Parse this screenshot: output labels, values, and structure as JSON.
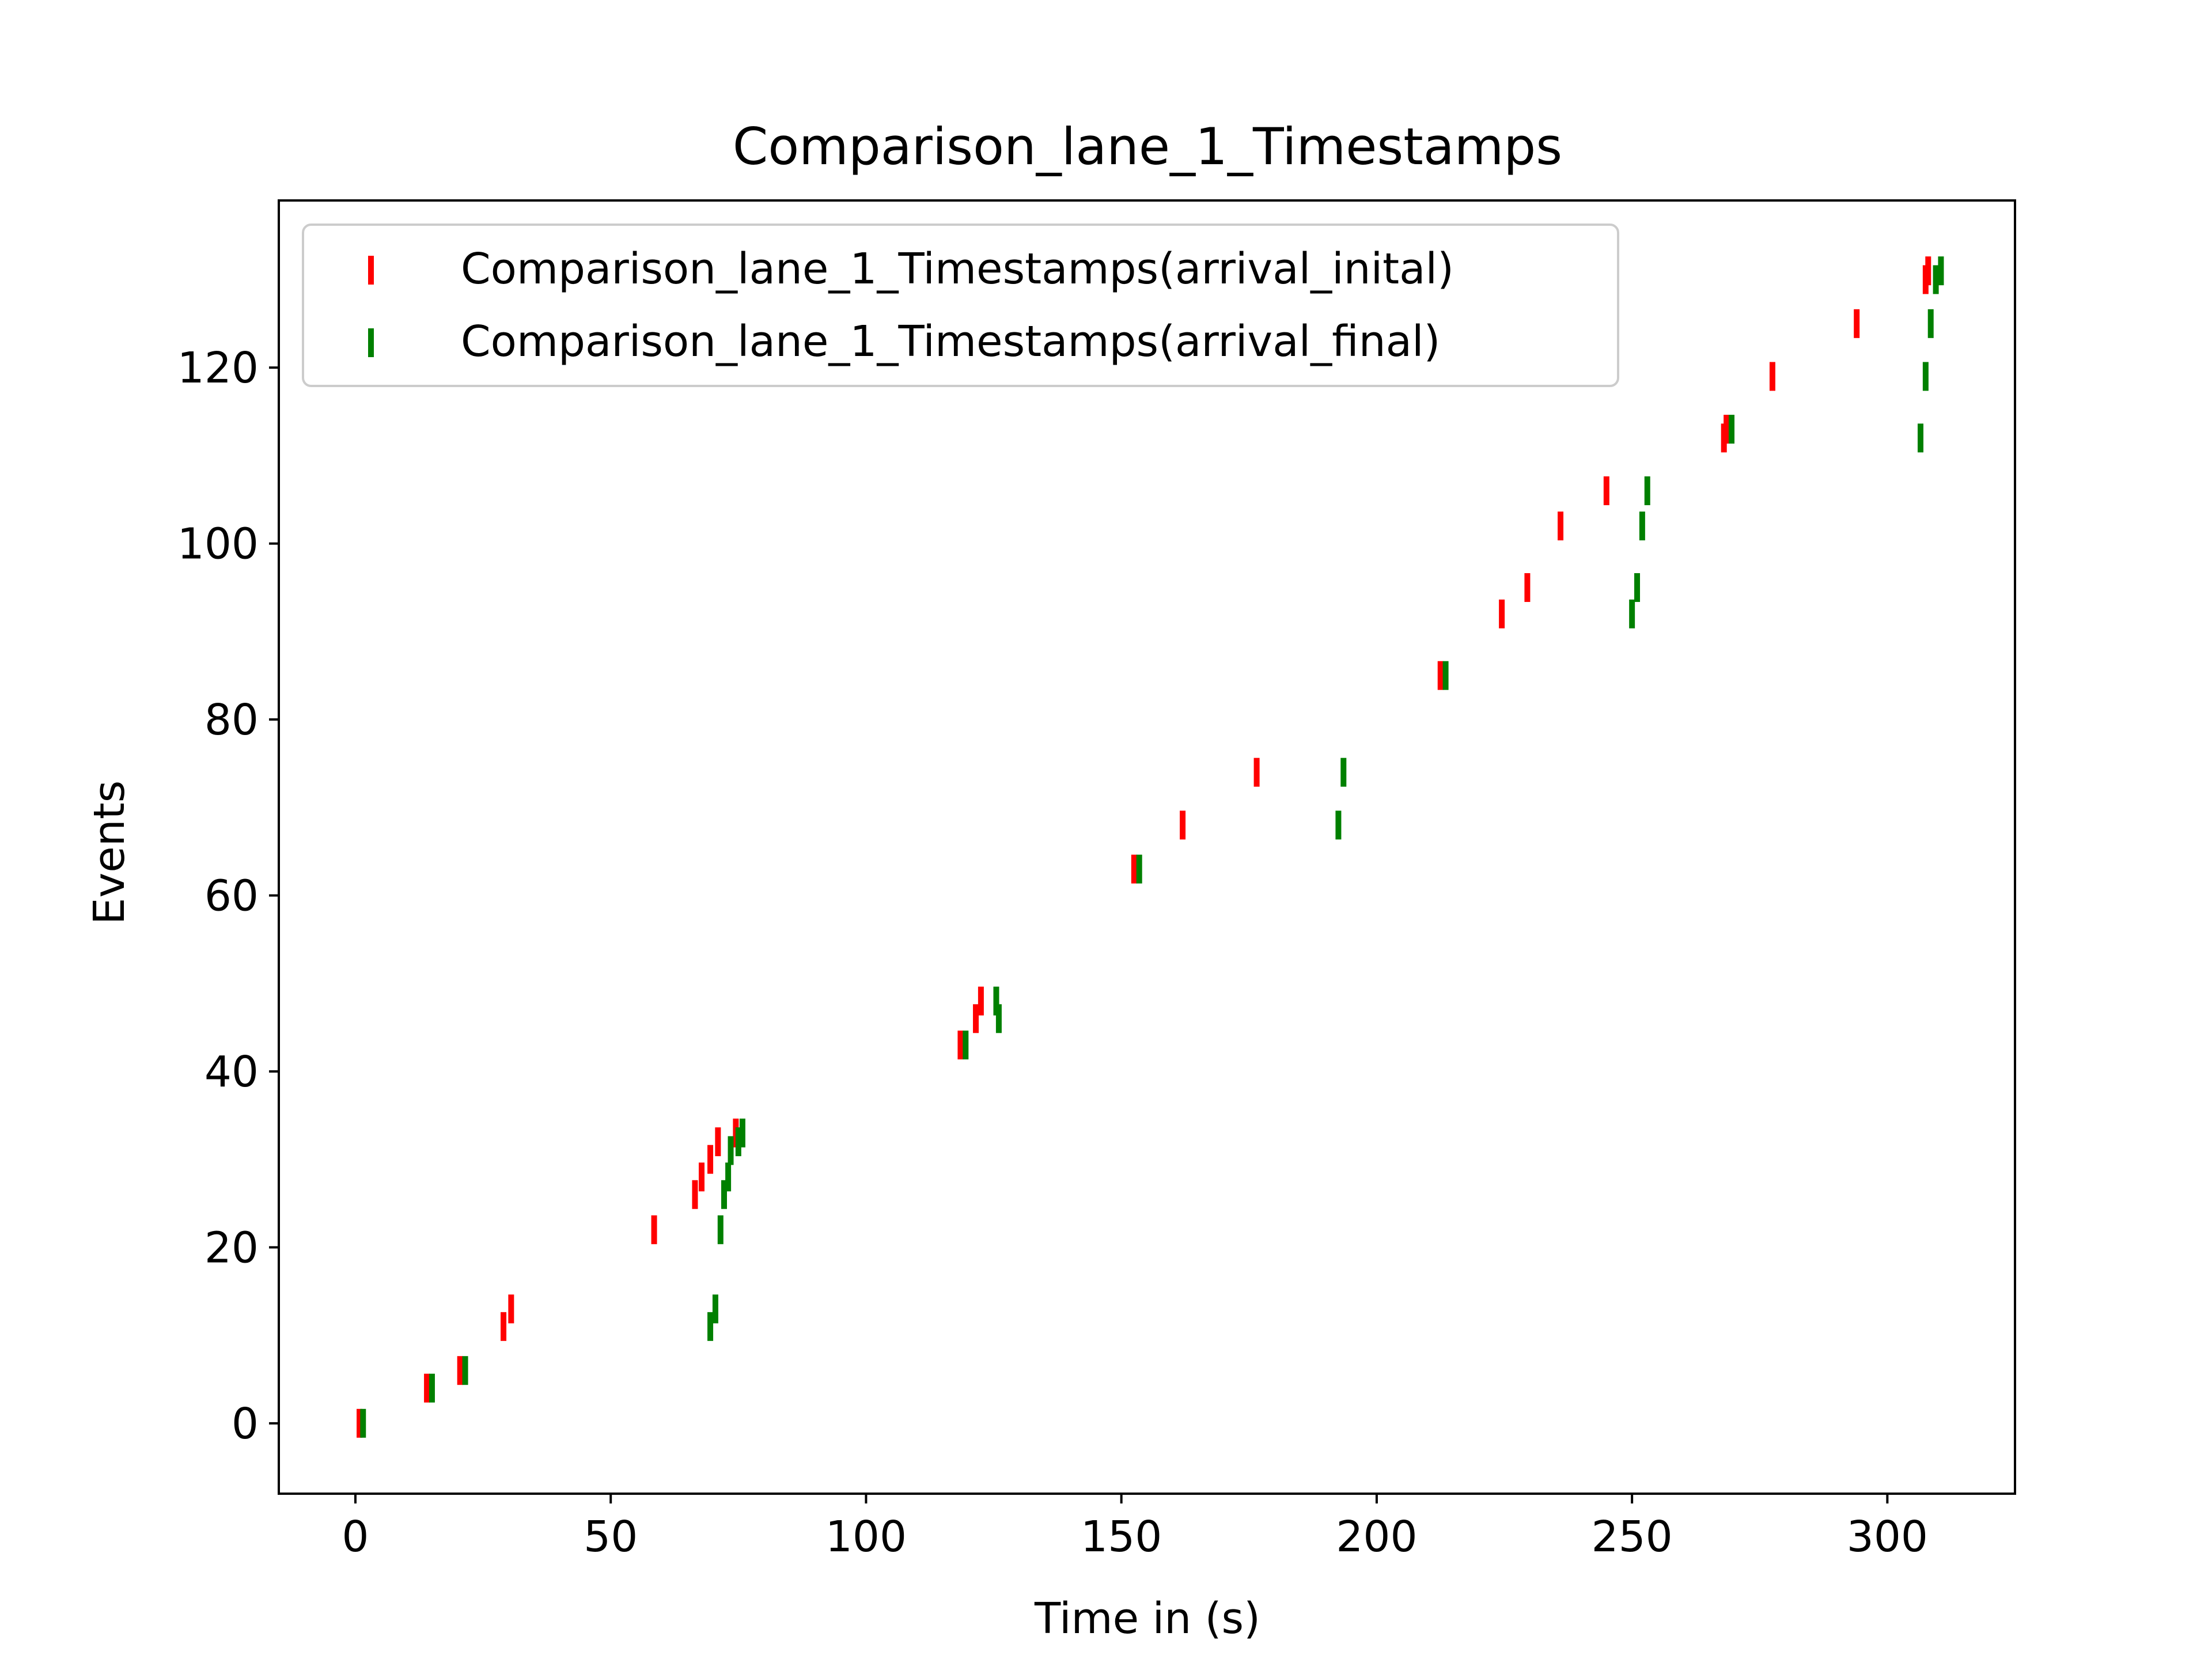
{
  "chart_data": {
    "type": "scatter",
    "marker": "vertical-bar",
    "title": "Comparison_lane_1_Timestamps",
    "xlabel": "Time in (s)",
    "ylabel": "Events",
    "xlim": [
      -15,
      325
    ],
    "ylim": [
      -8,
      139
    ],
    "xticks": [
      0,
      50,
      100,
      150,
      200,
      250,
      300
    ],
    "yticks": [
      0,
      20,
      40,
      60,
      80,
      100,
      120
    ],
    "xtick_labels": [
      "0",
      "50",
      "100",
      "150",
      "200",
      "250",
      "300"
    ],
    "ytick_labels": [
      "0",
      "20",
      "40",
      "60",
      "80",
      "100",
      "120"
    ],
    "grid": false,
    "legend_position": "top-left",
    "series": [
      {
        "name": "Comparison_lane_1_Timestamps(arrival_inital)",
        "color": "#ff0000",
        "points": [
          {
            "x": 0.8,
            "y": 0
          },
          {
            "x": 14,
            "y": 4
          },
          {
            "x": 20.5,
            "y": 6
          },
          {
            "x": 29,
            "y": 11
          },
          {
            "x": 30.5,
            "y": 13
          },
          {
            "x": 58.5,
            "y": 22
          },
          {
            "x": 66.5,
            "y": 26
          },
          {
            "x": 67.8,
            "y": 28
          },
          {
            "x": 69.5,
            "y": 30
          },
          {
            "x": 71,
            "y": 32
          },
          {
            "x": 74.5,
            "y": 33
          },
          {
            "x": 118.5,
            "y": 43
          },
          {
            "x": 121.5,
            "y": 46
          },
          {
            "x": 122.5,
            "y": 48
          },
          {
            "x": 152.5,
            "y": 63
          },
          {
            "x": 162,
            "y": 68
          },
          {
            "x": 176.5,
            "y": 74
          },
          {
            "x": 212.5,
            "y": 85
          },
          {
            "x": 224.5,
            "y": 92
          },
          {
            "x": 229.5,
            "y": 95
          },
          {
            "x": 236,
            "y": 102
          },
          {
            "x": 245,
            "y": 106
          },
          {
            "x": 268,
            "y": 112
          },
          {
            "x": 268.5,
            "y": 113
          },
          {
            "x": 277.5,
            "y": 119
          },
          {
            "x": 294,
            "y": 125
          },
          {
            "x": 307.5,
            "y": 130
          },
          {
            "x": 308,
            "y": 131
          }
        ]
      },
      {
        "name": "Comparison_lane_1_Timestamps(arrival_final)",
        "color": "#008000",
        "points": [
          {
            "x": 1.5,
            "y": 0
          },
          {
            "x": 15,
            "y": 4
          },
          {
            "x": 21.5,
            "y": 6
          },
          {
            "x": 69.5,
            "y": 11
          },
          {
            "x": 70.5,
            "y": 13
          },
          {
            "x": 71.5,
            "y": 22
          },
          {
            "x": 72.2,
            "y": 26
          },
          {
            "x": 73,
            "y": 28
          },
          {
            "x": 73.5,
            "y": 31
          },
          {
            "x": 75,
            "y": 32
          },
          {
            "x": 75.8,
            "y": 33
          },
          {
            "x": 119.5,
            "y": 43
          },
          {
            "x": 126,
            "y": 46
          },
          {
            "x": 125.5,
            "y": 48
          },
          {
            "x": 153.5,
            "y": 63
          },
          {
            "x": 192.5,
            "y": 68
          },
          {
            "x": 193.5,
            "y": 74
          },
          {
            "x": 213.5,
            "y": 85
          },
          {
            "x": 250,
            "y": 92
          },
          {
            "x": 251,
            "y": 95
          },
          {
            "x": 252,
            "y": 102
          },
          {
            "x": 253,
            "y": 106
          },
          {
            "x": 306.5,
            "y": 112
          },
          {
            "x": 269.5,
            "y": 113
          },
          {
            "x": 307.5,
            "y": 119
          },
          {
            "x": 308.5,
            "y": 125
          },
          {
            "x": 309.5,
            "y": 130
          },
          {
            "x": 310.5,
            "y": 131
          }
        ]
      }
    ]
  }
}
